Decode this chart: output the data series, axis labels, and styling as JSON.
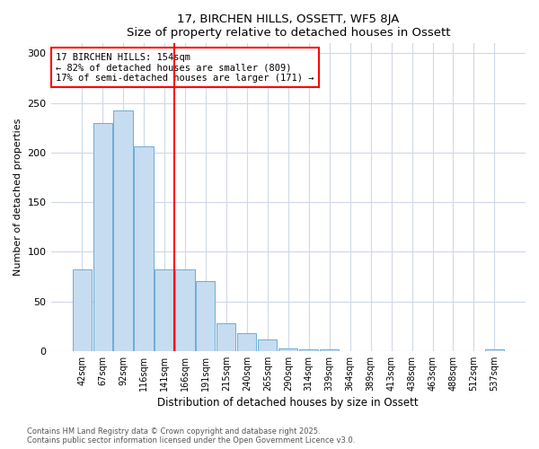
{
  "title1": "17, BIRCHEN HILLS, OSSETT, WF5 8JA",
  "title2": "Size of property relative to detached houses in Ossett",
  "xlabel": "Distribution of detached houses by size in Ossett",
  "ylabel": "Number of detached properties",
  "bar_color": "#c6dcf0",
  "bar_edge_color": "#6aaed6",
  "categories": [
    "42sqm",
    "67sqm",
    "92sqm",
    "116sqm",
    "141sqm",
    "166sqm",
    "191sqm",
    "215sqm",
    "240sqm",
    "265sqm",
    "290sqm",
    "314sqm",
    "339sqm",
    "364sqm",
    "389sqm",
    "413sqm",
    "438sqm",
    "463sqm",
    "488sqm",
    "512sqm",
    "537sqm"
  ],
  "values": [
    82,
    230,
    242,
    206,
    82,
    82,
    70,
    28,
    18,
    12,
    3,
    2,
    2,
    0,
    0,
    0,
    0,
    0,
    0,
    0,
    2
  ],
  "redline_x": 4.5,
  "annotation_text": "17 BIRCHEN HILLS: 154sqm\n← 82% of detached houses are smaller (809)\n17% of semi-detached houses are larger (171) →",
  "ylim": [
    0,
    310
  ],
  "yticks": [
    0,
    50,
    100,
    150,
    200,
    250,
    300
  ],
  "footer1": "Contains HM Land Registry data © Crown copyright and database right 2025.",
  "footer2": "Contains public sector information licensed under the Open Government Licence v3.0.",
  "bg_color": "#ffffff",
  "plot_bg_color": "#ffffff",
  "grid_color": "#d0d8e8"
}
